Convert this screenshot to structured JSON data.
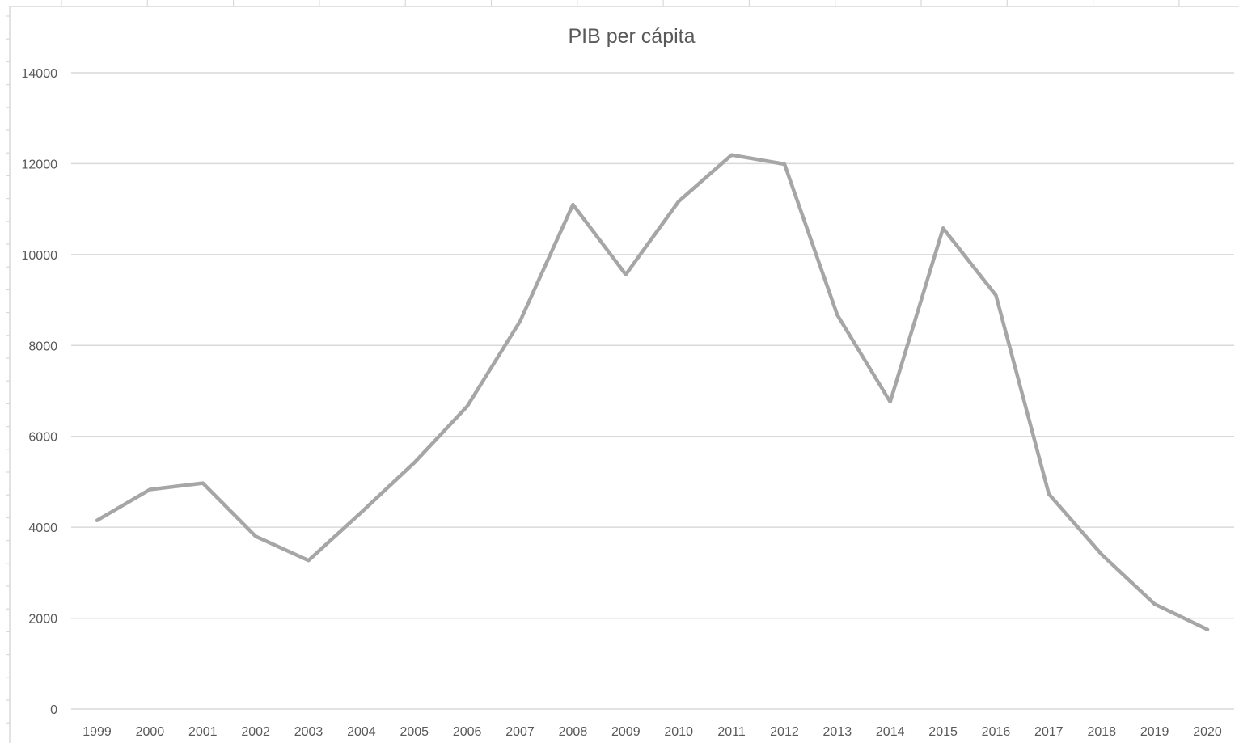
{
  "chart_data": {
    "type": "line",
    "title": "PIB per cápita",
    "xlabel": "",
    "ylabel": "",
    "categories": [
      "1999",
      "2000",
      "2001",
      "2002",
      "2003",
      "2004",
      "2005",
      "2006",
      "2007",
      "2008",
      "2009",
      "2010",
      "2011",
      "2012",
      "2013",
      "2014",
      "2015",
      "2016",
      "2017",
      "2018",
      "2019",
      "2020"
    ],
    "series": [
      {
        "color": "#a6a6a6",
        "values": [
          4150,
          4830,
          4970,
          3800,
          3270,
          4330,
          5420,
          6660,
          8530,
          11100,
          9560,
          11170,
          12190,
          11990,
          8670,
          6760,
          10580,
          9100,
          4730,
          3400,
          2310,
          1750
        ]
      }
    ],
    "yticks": [
      "0",
      "2000",
      "4000",
      "6000",
      "8000",
      "10000",
      "12000",
      "14000"
    ],
    "ylim": [
      0,
      14000
    ],
    "grid": true,
    "legend": "none",
    "colors": {
      "gridline": "#d9d9d9",
      "text": "#595959",
      "line": "#a6a6a6"
    }
  }
}
